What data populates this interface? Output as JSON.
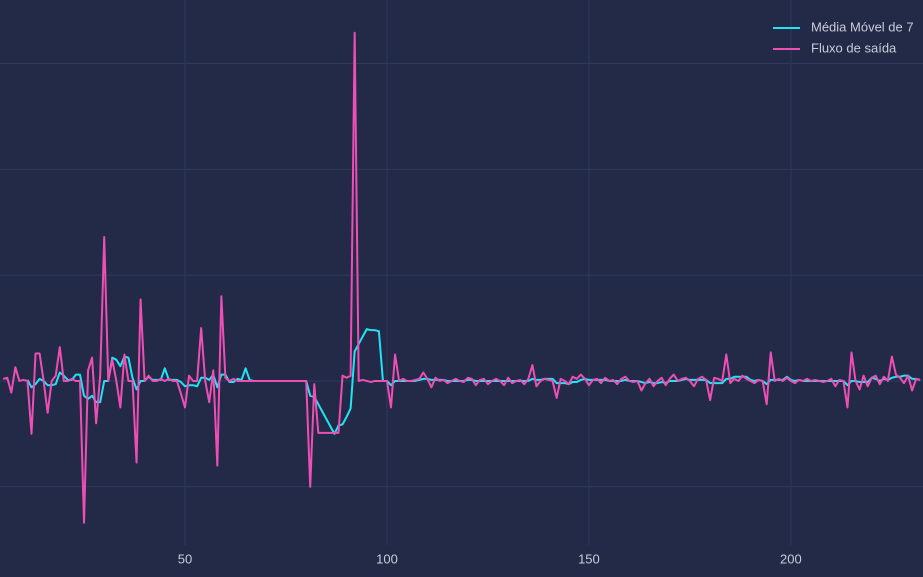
{
  "chart_data": {
    "type": "line",
    "x": [
      5,
      6,
      7,
      8,
      9,
      10,
      11,
      12,
      13,
      14,
      15,
      16,
      17,
      18,
      19,
      20,
      21,
      22,
      23,
      24,
      25,
      26,
      27,
      28,
      29,
      30,
      31,
      32,
      33,
      34,
      35,
      36,
      37,
      38,
      39,
      40,
      41,
      42,
      43,
      44,
      45,
      46,
      47,
      48,
      49,
      50,
      51,
      52,
      53,
      54,
      55,
      56,
      57,
      58,
      59,
      60,
      61,
      62,
      63,
      64,
      65,
      66,
      67,
      68,
      69,
      70,
      71,
      72,
      73,
      74,
      75,
      76,
      77,
      78,
      79,
      80,
      81,
      82,
      83,
      84,
      85,
      86,
      87,
      88,
      89,
      90,
      91,
      92,
      93,
      94,
      95,
      96,
      97,
      98,
      99,
      100,
      101,
      102,
      103,
      104,
      105,
      106,
      107,
      108,
      109,
      110,
      111,
      112,
      113,
      114,
      115,
      116,
      117,
      118,
      119,
      120,
      121,
      122,
      123,
      124,
      125,
      126,
      127,
      128,
      129,
      130,
      131,
      132,
      133,
      134,
      135,
      136,
      137,
      138,
      139,
      140,
      141,
      142,
      143,
      144,
      145,
      146,
      147,
      148,
      149,
      150,
      151,
      152,
      153,
      154,
      155,
      156,
      157,
      158,
      159,
      160,
      161,
      162,
      163,
      164,
      165,
      166,
      167,
      168,
      169,
      170,
      171,
      172,
      173,
      174,
      175,
      176,
      177,
      178,
      179,
      180,
      181,
      182,
      183,
      184,
      185,
      186,
      187,
      188,
      189,
      190,
      191,
      192,
      193,
      194,
      195,
      196,
      197,
      198,
      199,
      200,
      201,
      202,
      203,
      204,
      205,
      206,
      207,
      208,
      209,
      210,
      211,
      212,
      213,
      214,
      215,
      216,
      217,
      218,
      219,
      220,
      221,
      222,
      223,
      224,
      225,
      226,
      227,
      228,
      229,
      230,
      231,
      232
    ],
    "series": [
      {
        "name": "Média Móvel de 7",
        "color": "#22e3f5",
        "values": [
          null,
          null,
          null,
          null,
          null,
          null,
          0.01,
          -0.06,
          -0.03,
          0.02,
          0,
          -0.04,
          -0.04,
          -0.03,
          0.08,
          0.05,
          0.01,
          0.01,
          0.06,
          0.06,
          -0.14,
          -0.17,
          -0.14,
          -0.2,
          -0.2,
          0,
          0,
          0.22,
          0.2,
          0.14,
          0.23,
          0.22,
          0.03,
          -0.08,
          0,
          0,
          0.04,
          0.01,
          0.01,
          0.01,
          0.12,
          0.01,
          0.01,
          0.01,
          -0.01,
          -0.05,
          -0.04,
          -0.04,
          -0.05,
          0.03,
          0.03,
          0.01,
          0.06,
          -0.06,
          0.06,
          0.06,
          -0.01,
          -0.01,
          0.02,
          0.01,
          0.12,
          0.01,
          0,
          0,
          0,
          0,
          0,
          0,
          0,
          0,
          0,
          0,
          0,
          0,
          0,
          0,
          -0.14,
          -0.15,
          -0.22,
          -0.29,
          -0.36,
          -0.43,
          -0.5,
          -0.42,
          -0.41,
          -0.34,
          -0.26,
          0.28,
          0.35,
          0.42,
          0.49,
          0.48,
          0.48,
          0.47,
          0,
          0,
          -0.04,
          0,
          0,
          0,
          0,
          0,
          0,
          0.01,
          0.02,
          0.02,
          0.01,
          0.01,
          0.01,
          0.01,
          0,
          0,
          0,
          0,
          0,
          0.01,
          0.01,
          0,
          0,
          0,
          0,
          0,
          0,
          0,
          0,
          0,
          0,
          0,
          0,
          0,
          0,
          0.02,
          0.01,
          0.01,
          0.02,
          0.02,
          0.02,
          -0.02,
          -0.02,
          -0.02,
          -0.03,
          -0.01,
          -0.01,
          0.01,
          0.02,
          0.01,
          0.01,
          0.01,
          0.01,
          0.01,
          0,
          0,
          0,
          0,
          0.01,
          0,
          0,
          0,
          -0.01,
          -0.02,
          -0.01,
          -0.02,
          -0.02,
          -0.01,
          -0.02,
          0,
          0,
          0,
          0.01,
          0.02,
          0.01,
          0.01,
          0.01,
          0.01,
          0.01,
          -0.02,
          -0.02,
          -0.02,
          -0.02,
          0.02,
          0.02,
          0.04,
          0.04,
          0.04,
          0.04,
          0.01,
          0,
          0.01,
          0,
          -0.03,
          0.01,
          0.01,
          0.01,
          0.01,
          0.04,
          0.01,
          0,
          0.01,
          0,
          0,
          0,
          0,
          0,
          0,
          0,
          0,
          0,
          0,
          0,
          -0.04,
          0,
          0,
          -0.01,
          -0.01,
          -0.01,
          0.03,
          0.02,
          0,
          0.02,
          0.01,
          0.03,
          0.04,
          0.04,
          0.05,
          0.05,
          0.02,
          0.02,
          0.01
        ]
      },
      {
        "name": "Fluxo de saída",
        "color": "#ee4fb5",
        "values": [
          0.02,
          0.03,
          -0.11,
          0.13,
          0,
          0.01,
          0,
          -0.5,
          0.26,
          0.26,
          0,
          -0.3,
          0,
          0.05,
          0.32,
          0,
          0,
          0.02,
          0,
          0,
          -1.34,
          0.1,
          0.22,
          -0.4,
          0.05,
          1.36,
          0,
          0.2,
          0,
          -0.25,
          0.25,
          0,
          0,
          -0.77,
          0.77,
          0,
          0.05,
          0,
          0,
          0.02,
          0,
          0.02,
          0,
          0,
          -0.12,
          -0.25,
          0.05,
          0,
          0,
          0.5,
          0,
          -0.2,
          0.1,
          -0.8,
          0.8,
          0.03,
          0,
          0.02,
          0,
          0,
          0,
          0,
          0,
          0,
          0,
          0,
          0,
          0,
          0,
          0,
          0,
          0,
          0,
          0,
          0,
          0,
          -1,
          -0.03,
          -0.49,
          -0.49,
          -0.49,
          -0.49,
          -0.49,
          -0.49,
          0.05,
          0.03,
          0.05,
          3.29,
          0,
          0.01,
          0,
          -0.01,
          0,
          0,
          0,
          0,
          -0.25,
          0.25,
          0,
          0.02,
          0,
          0,
          0.01,
          0.02,
          0.08,
          0.02,
          -0.06,
          0.03,
          0,
          0.01,
          -0.02,
          0,
          0.02,
          0,
          -0.01,
          0.03,
          0.02,
          -0.04,
          0.01,
          0.02,
          -0.03,
          0,
          0.02,
          0,
          -0.04,
          0.03,
          -0.02,
          0,
          0.01,
          -0.03,
          0.02,
          0.15,
          -0.05,
          0,
          0.02,
          0.01,
          0,
          -0.16,
          0.02,
          0,
          -0.03,
          0.04,
          0.02,
          0.06,
          0.02,
          -0.04,
          0.01,
          0.02,
          -0.02,
          0.03,
          0,
          0.01,
          -0.03,
          0.02,
          0.04,
          0,
          -0.01,
          0,
          -0.09,
          -0.02,
          0.02,
          -0.05,
          0,
          0.03,
          -0.04,
          0.02,
          0.06,
          0,
          0.02,
          0.03,
          0,
          -0.05,
          0.02,
          0.04,
          0.01,
          -0.18,
          0.03,
          0.02,
          0,
          0.25,
          -0.02,
          0.02,
          0,
          0.05,
          0.02,
          0,
          -0.02,
          0.01,
          0,
          -0.22,
          0.27,
          0,
          0.02,
          0,
          0.03,
          0,
          -0.02,
          0.01,
          0,
          0.02,
          0,
          0.01,
          0,
          -0.01,
          0,
          0.02,
          -0.05,
          0.01,
          0,
          -0.25,
          0.27,
          0,
          -0.08,
          0.05,
          -0.05,
          0.03,
          0.05,
          -0.03,
          0.04,
          0,
          0.23,
          0.06,
          0.03,
          -0.02,
          0.05,
          -0.09,
          0.02,
          0.01
        ]
      }
    ],
    "xlim": [
      4.2,
      232.7
    ],
    "xticks": [
      50,
      100,
      150,
      200
    ],
    "ylim": [
      -1.55,
      3.6
    ],
    "yticks": [
      -1,
      0,
      1,
      2,
      3
    ],
    "grid": true,
    "legend": "upper right"
  }
}
